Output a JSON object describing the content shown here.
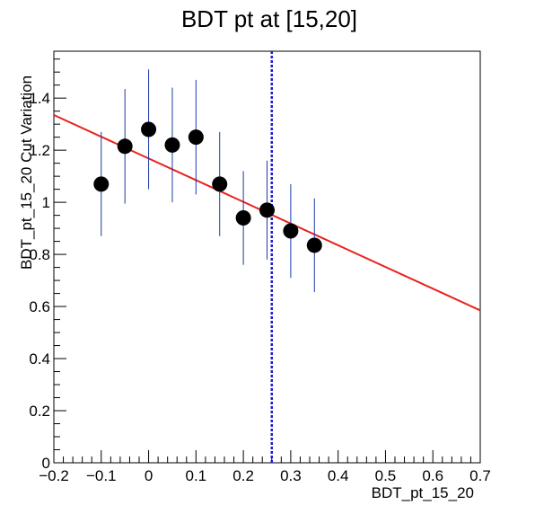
{
  "chart_data": {
    "type": "scatter",
    "title": "BDT pt at [15,20]",
    "xlabel": "BDT_pt_15_20",
    "ylabel": "BDT_pt_15_20 Cut Variation",
    "xlim": [
      -0.2,
      0.7
    ],
    "ylim": [
      0,
      1.58
    ],
    "x_ticks": [
      -0.2,
      -0.1,
      0,
      0.1,
      0.2,
      0.3,
      0.4,
      0.5,
      0.6,
      0.7
    ],
    "x_tick_labels": [
      "−0.2",
      "−0.1",
      "0",
      "0.1",
      "0.2",
      "0.3",
      "0.4",
      "0.5",
      "0.6",
      "0.7"
    ],
    "y_ticks": [
      0,
      0.2,
      0.4,
      0.6,
      0.8,
      1,
      1.2,
      1.4
    ],
    "y_tick_labels": [
      "0",
      "0.2",
      "0.4",
      "0.6",
      "0.8",
      "1",
      "1.2",
      "1.4"
    ],
    "grid": false,
    "points": [
      {
        "x": -0.1,
        "y": 1.07,
        "err": 0.2
      },
      {
        "x": -0.05,
        "y": 1.215,
        "err": 0.22
      },
      {
        "x": 0.0,
        "y": 1.28,
        "err": 0.23
      },
      {
        "x": 0.05,
        "y": 1.22,
        "err": 0.22
      },
      {
        "x": 0.1,
        "y": 1.25,
        "err": 0.22
      },
      {
        "x": 0.15,
        "y": 1.07,
        "err": 0.2
      },
      {
        "x": 0.2,
        "y": 0.94,
        "err": 0.18
      },
      {
        "x": 0.25,
        "y": 0.97,
        "err": 0.19
      },
      {
        "x": 0.3,
        "y": 0.89,
        "err": 0.18
      },
      {
        "x": 0.35,
        "y": 0.835,
        "err": 0.18
      }
    ],
    "fit_line": {
      "x": [
        -0.2,
        0.7
      ],
      "y": [
        1.335,
        0.585
      ],
      "color": "#e8221d"
    },
    "vertical_line": {
      "x": 0.26,
      "color": "#1b1bd6",
      "style": "dashed"
    },
    "marker_color": "#000000",
    "error_bar_color": "#1b3aa8"
  }
}
